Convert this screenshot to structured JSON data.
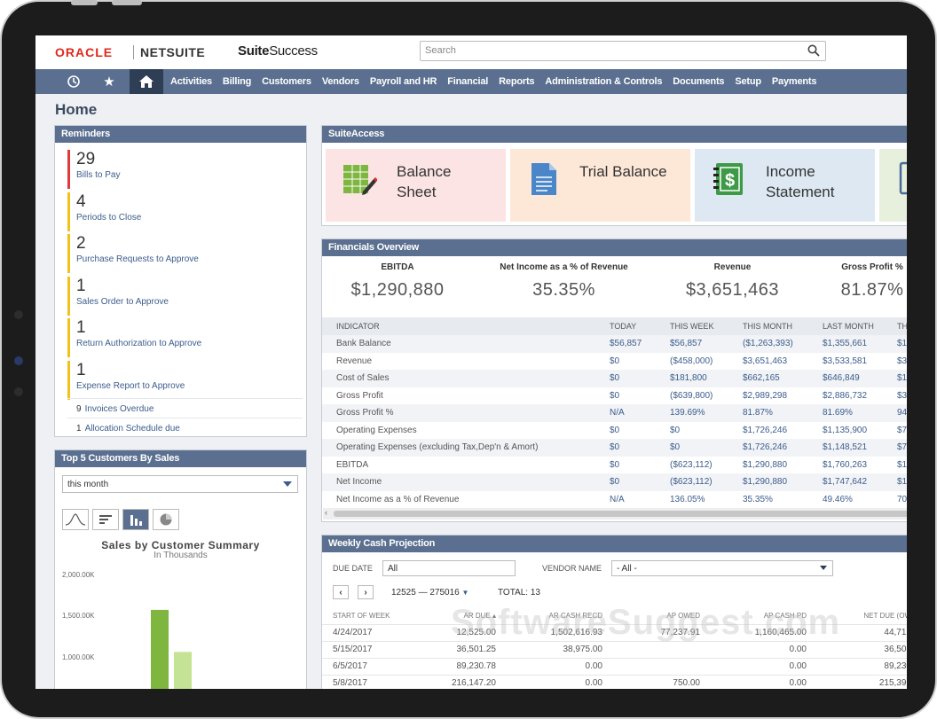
{
  "header": {
    "brand_oracle": "ORACLE",
    "brand_netsuite": "NETSUITE",
    "brand_suite": "Suite",
    "brand_success": "Success",
    "search_placeholder": "Search"
  },
  "nav": {
    "items": [
      "Activities",
      "Billing",
      "Customers",
      "Vendors",
      "Payroll and HR",
      "Financial",
      "Reports",
      "Administration & Controls",
      "Documents",
      "Setup",
      "Payments"
    ]
  },
  "page": {
    "title": "Home"
  },
  "reminders": {
    "title": "Reminders",
    "items": [
      {
        "count": "29",
        "label": "Bills to Pay"
      },
      {
        "count": "4",
        "label": "Periods to Close"
      },
      {
        "count": "2",
        "label": "Purchase Requests to Approve"
      },
      {
        "count": "1",
        "label": "Sales Order to Approve"
      },
      {
        "count": "1",
        "label": "Return Authorization to Approve"
      },
      {
        "count": "1",
        "label": "Expense Report to Approve"
      }
    ],
    "small": [
      {
        "count": "9",
        "label": "Invoices Overdue"
      },
      {
        "count": "1",
        "label": "Allocation Schedule due"
      }
    ]
  },
  "top_customers": {
    "title": "Top 5 Customers By Sales",
    "period": "this month",
    "chart_title": "Sales by Customer Summary",
    "chart_subtitle": "In Thousands"
  },
  "chart_data": {
    "type": "bar",
    "title": "Sales by Customer Summary",
    "subtitle": "In Thousands",
    "ytick_labels": [
      "2,000.00K",
      "1,500.00K",
      "1,000.00K"
    ],
    "ylim": [
      500,
      2000
    ],
    "series": [
      {
        "values": [
          1560
        ]
      },
      {
        "values": [
          1050
        ]
      }
    ],
    "colors": [
      "#7fb640",
      "#c5e394"
    ]
  },
  "suiteaccess": {
    "title": "SuiteAccess",
    "tiles": [
      {
        "line1": "Balance",
        "line2": "Sheet",
        "bg": "#fce4e4"
      },
      {
        "line1": "Trial Balance",
        "line2": "",
        "bg": "#fde8d8"
      },
      {
        "line1": "Income",
        "line2": "Statement",
        "bg": "#dde8f3"
      }
    ]
  },
  "financials": {
    "title": "Financials Overview",
    "kpis": [
      {
        "label": "EBITDA",
        "value": "$1,290,880"
      },
      {
        "label": "Net Income as a % of Revenue",
        "value": "35.35%"
      },
      {
        "label": "Revenue",
        "value": "$3,651,463"
      },
      {
        "label": "Gross Profit %",
        "value": "81.87%"
      }
    ],
    "columns": [
      "INDICATOR",
      "TODAY",
      "THIS WEEK",
      "THIS MONTH",
      "LAST MONTH",
      "TH"
    ],
    "rows": [
      [
        "Bank Balance",
        "$56,857",
        "$56,857",
        "($1,263,393)",
        "$1,355,661",
        "$1"
      ],
      [
        "Revenue",
        "$0",
        "($458,000)",
        "$3,651,463",
        "$3,533,581",
        "$3"
      ],
      [
        "Cost of Sales",
        "$0",
        "$181,800",
        "$662,165",
        "$646,849",
        "$1"
      ],
      [
        "Gross Profit",
        "$0",
        "($639,800)",
        "$2,989,298",
        "$2,886,732",
        "$3"
      ],
      [
        "Gross Profit %",
        "N/A",
        "139.69%",
        "81.87%",
        "81.69%",
        "94"
      ],
      [
        "Operating Expenses",
        "$0",
        "$0",
        "$1,726,246",
        "$1,135,900",
        "$7"
      ],
      [
        "Operating Expenses (excluding Tax,Dep'n & Amort)",
        "$0",
        "$0",
        "$1,726,246",
        "$1,148,521",
        "$7"
      ],
      [
        "EBITDA",
        "$0",
        "($623,112)",
        "$1,290,880",
        "$1,760,263",
        "$1"
      ],
      [
        "Net Income",
        "$0",
        "($623,112)",
        "$1,290,880",
        "$1,747,642",
        "$1"
      ],
      [
        "Net Income as a % of Revenue",
        "N/A",
        "136.05%",
        "35.35%",
        "49.46%",
        "70"
      ]
    ]
  },
  "weekly": {
    "title": "Weekly Cash Projection",
    "due_date_label": "DUE DATE",
    "due_date_value": "All",
    "vendor_label": "VENDOR NAME",
    "vendor_value": "- All -",
    "range": "12525 — 275016",
    "total_label": "TOTAL:",
    "total_value": "13",
    "columns": [
      "START OF WEEK",
      "AR DUE ▴",
      "AR CASH RECD",
      "AP OWED",
      "AP CASH PD",
      "NET DUE (OW"
    ],
    "rows": [
      [
        "4/24/2017",
        "12,525.00",
        "1,502,616.93",
        "77,237.91",
        "1,160,465.00",
        "44,712"
      ],
      [
        "5/15/2017",
        "36,501.25",
        "38,975.00",
        "",
        "0.00",
        "36,501"
      ],
      [
        "6/5/2017",
        "89,230.78",
        "0.00",
        "",
        "0.00",
        "89,230"
      ],
      [
        "5/8/2017",
        "216,147.20",
        "0.00",
        "750.00",
        "0.00",
        "215,397"
      ]
    ]
  },
  "watermark": "SoftwareSuggest.com",
  "icons": {
    "nav": [
      "history-icon",
      "star-icon",
      "home-icon"
    ],
    "search": "search-icon"
  }
}
